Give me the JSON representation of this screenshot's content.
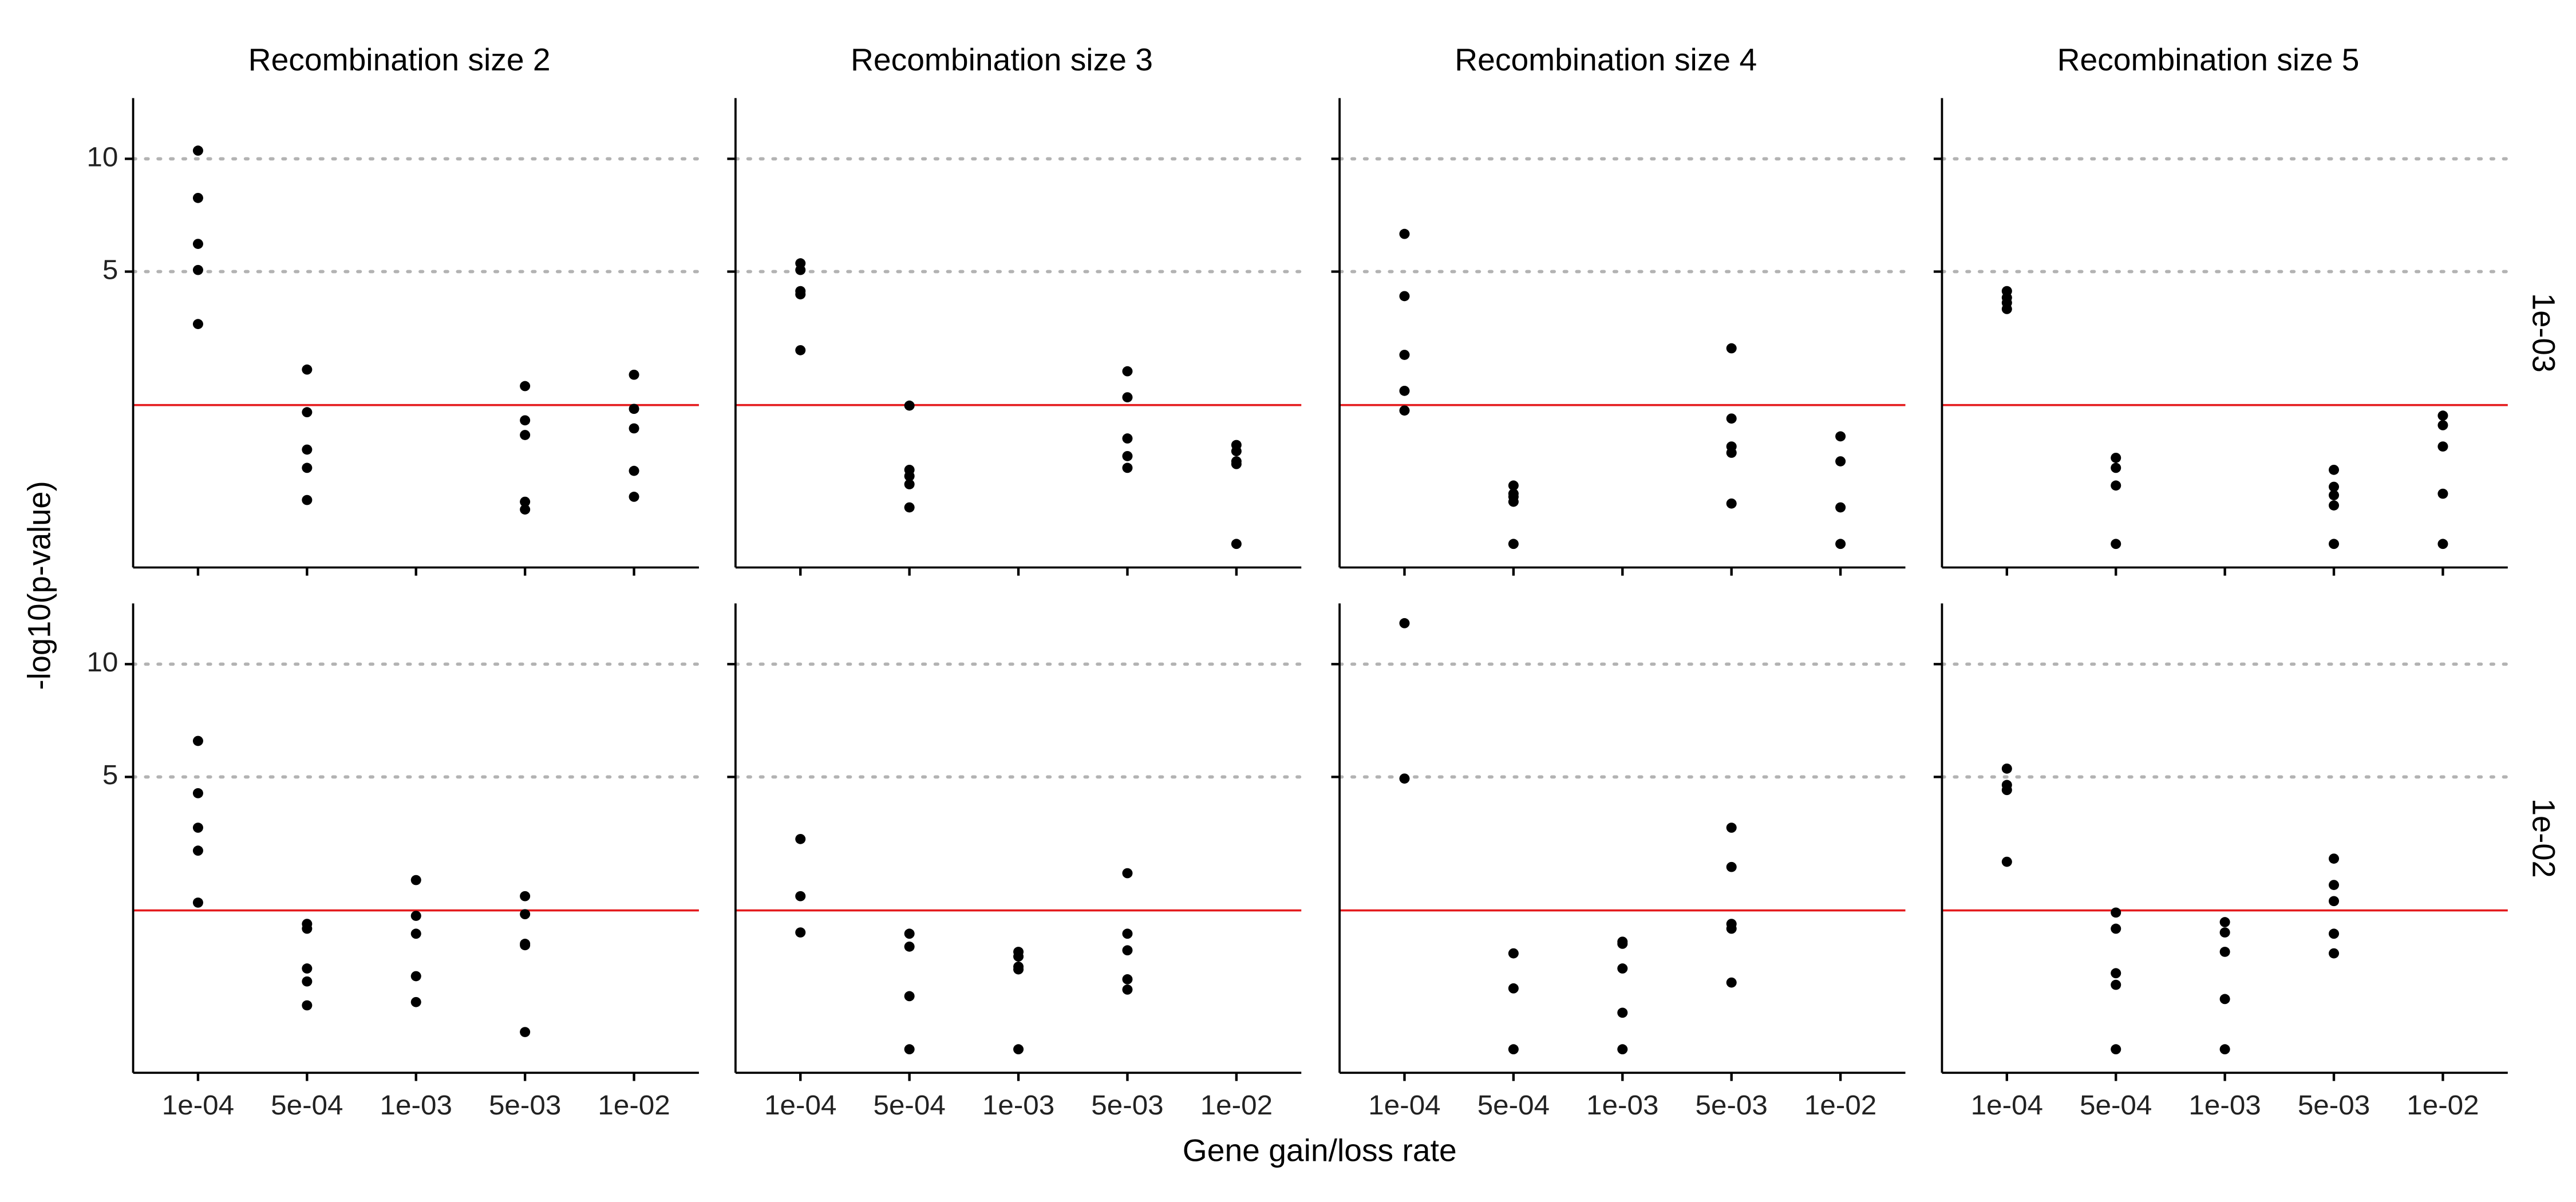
{
  "chart_data": {
    "type": "facet_strip",
    "x_label": "Gene gain/loss rate",
    "y_label": "-log10(p-value)",
    "col_labels": [
      "Recombination size 2",
      "Recombination size 3",
      "Recombination size 4",
      "Recombination size 5"
    ],
    "row_labels": [
      "1e-03",
      "1e-02"
    ],
    "categories": [
      "1e-04",
      "5e-04",
      "1e-03",
      "5e-03",
      "1e-02"
    ],
    "y_scale": "sqrt",
    "ylim": [
      0,
      13.4
    ],
    "yticks": [
      5,
      10
    ],
    "grid": true,
    "point_color": "#000000",
    "reference_line": {
      "value": 1.3,
      "color": "#e41a1c"
    },
    "panels": [
      [
        [
          10.43,
          8.07,
          6.07,
          5.06,
          3.26
        ],
        [
          2.05,
          1.17,
          0.6,
          0.39,
          0.13
        ],
        [],
        [
          1.68,
          1.03,
          0.8,
          0.12,
          0.08
        ],
        [
          1.93,
          1.23,
          0.9,
          0.36,
          0.15
        ]
      ],
      [
        [
          5.31,
          5.06,
          4.31,
          4.2,
          2.53
        ],
        [
          1.29,
          0.37,
          0.31,
          0.24,
          0.09
        ],
        [],
        [
          2.01,
          1.45,
          0.75,
          0.52,
          0.39
        ],
        [
          0.66,
          0.58,
          0.46,
          0.43,
          0
        ]
      ],
      [
        [
          6.48,
          4.14,
          2.41,
          1.58,
          1.2
        ],
        [
          0.23,
          0.17,
          0.15,
          0.12,
          0
        ],
        [],
        [
          2.58,
          1.06,
          0.64,
          0.56,
          0.11
        ],
        [
          0.78,
          0.46,
          0.09,
          0
        ]
      ],
      [
        [
          4.31,
          4.09,
          3.92,
          3.72
        ],
        [
          0.5,
          0.39,
          0.23,
          0
        ],
        [],
        [
          0.37,
          0.22,
          0.16,
          0.1,
          0
        ],
        [
          1.11,
          0.95,
          0.64,
          0.17,
          0
        ]
      ],
      [
        [
          6.41,
          4.42,
          3.31,
          2.66,
          1.45
        ],
        [
          1.06,
          0.98,
          0.44,
          0.31,
          0.13
        ],
        [
          1.93,
          1.2,
          0.9,
          0.36,
          0.15
        ],
        [
          1.58,
          1.23,
          0.75,
          0.73,
          0.02
        ],
        []
      ],
      [
        [
          2.98,
          1.58,
          0.92
        ],
        [
          0.9,
          0.71,
          0.19,
          0
        ],
        [
          0.64,
          0.58,
          0.46,
          0.43,
          0
        ],
        [
          2.09,
          0.9,
          0.66,
          0.33,
          0.24
        ],
        []
      ],
      [
        [
          12.24,
          4.94
        ],
        [
          0.62,
          0.25,
          0
        ],
        [
          0.78,
          0.75,
          0.44,
          0.09,
          0
        ],
        [
          3.31,
          2.24,
          1.06,
          0.98,
          0.3
        ],
        []
      ],
      [
        [
          5.31,
          4.71,
          4.53,
          2.37
        ],
        [
          1.26,
          0.98,
          0.39,
          0.28,
          0
        ],
        [
          1.09,
          0.92,
          0.64,
          0.17,
          0
        ],
        [
          2.45,
          1.82,
          1.48,
          0.9,
          0.62
        ],
        []
      ]
    ]
  }
}
